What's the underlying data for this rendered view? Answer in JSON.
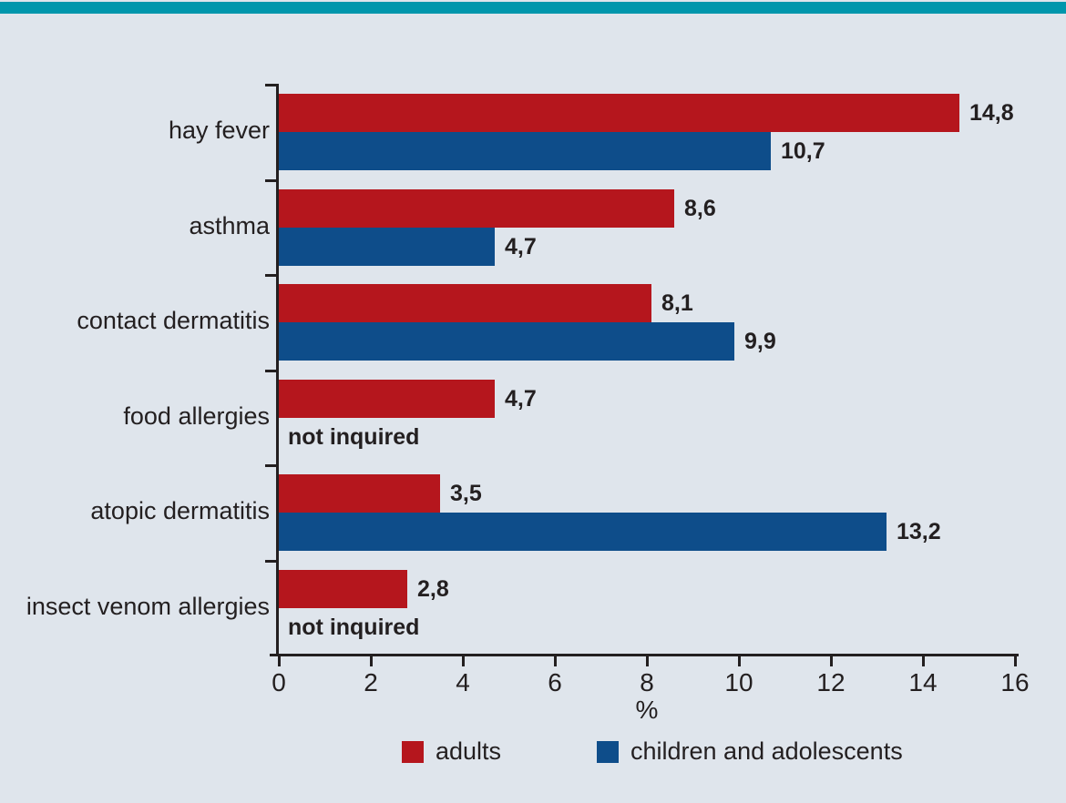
{
  "page": {
    "background": "#dfe5ec",
    "top_bar_color": "#0096ac",
    "text_color": "#231f20",
    "axis_color": "#231f20"
  },
  "chart_data": {
    "type": "bar",
    "orientation": "horizontal",
    "categories": [
      "hay fever",
      "asthma",
      "contact dermatitis",
      "food allergies",
      "atopic dermatitis",
      "insect venom allergies"
    ],
    "series": [
      {
        "name": "adults",
        "color": "#b5161d",
        "values": [
          14.8,
          8.6,
          8.1,
          4.7,
          3.5,
          2.8
        ],
        "labels": [
          "14,8",
          "8,6",
          "8,1",
          "4,7",
          "3,5",
          "2,8"
        ]
      },
      {
        "name": "children and adolescents",
        "color": "#0e4d8a",
        "values": [
          10.7,
          4.7,
          9.9,
          null,
          13.2,
          null
        ],
        "labels": [
          "10,7",
          "4,7",
          "9,9",
          "not inquired",
          "13,2",
          "not inquired"
        ]
      }
    ],
    "missing_label": "not inquired",
    "xlabel": "%",
    "xlim": [
      0,
      16
    ],
    "xticks": [
      0,
      2,
      4,
      6,
      8,
      10,
      12,
      14,
      16
    ],
    "grid": false,
    "legend_position": "bottom"
  }
}
